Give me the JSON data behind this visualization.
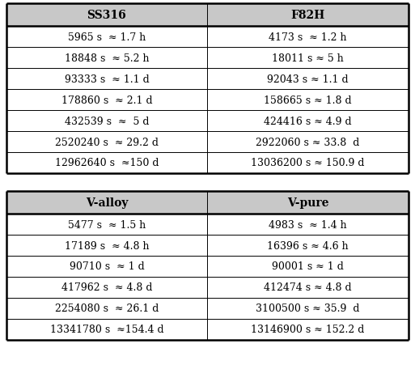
{
  "table1_headers": [
    "SS316",
    "F82H"
  ],
  "table1_rows": [
    [
      "5965 s  ≈ 1.7 h",
      "4173 s  ≈ 1.2 h"
    ],
    [
      "18848 s  ≈ 5.2 h",
      "18011 s ≈ 5 h"
    ],
    [
      "93333 s  ≈ 1.1 d",
      "92043 s ≈ 1.1 d"
    ],
    [
      "178860 s  ≈ 2.1 d",
      "158665 s ≈ 1.8 d"
    ],
    [
      "432539 s  ≈  5 d",
      "424416 s ≈ 4.9 d"
    ],
    [
      "2520240 s  ≈ 29.2 d",
      "2922060 s ≈ 33.8  d"
    ],
    [
      "12962640 s  ≈150 d",
      "13036200 s ≈ 150.9 d"
    ]
  ],
  "table2_headers": [
    "V-alloy",
    "V-pure"
  ],
  "table2_rows": [
    [
      "5477 s  ≈ 1.5 h",
      "4983 s  ≈ 1.4 h"
    ],
    [
      "17189 s  ≈ 4.8 h",
      "16396 s ≈ 4.6 h"
    ],
    [
      "90710 s  ≈ 1 d",
      "90001 s ≈ 1 d"
    ],
    [
      "417962 s  ≈ 4.8 d",
      "412474 s ≈ 4.8 d"
    ],
    [
      "2254080 s  ≈ 26.1 d",
      "3100500 s ≈ 35.9  d"
    ],
    [
      "13341780 s  ≈154.4 d",
      "13146900 s ≈ 152.2 d"
    ]
  ],
  "header_bg_color": "#c8c8c8",
  "row_bg_color": "#ffffff",
  "header_fontsize": 10,
  "cell_fontsize": 9,
  "figsize": [
    5.13,
    4.52
  ],
  "dpi": 100,
  "bg_color": "#ffffff",
  "fig_bg_color": "#e0e0e0"
}
